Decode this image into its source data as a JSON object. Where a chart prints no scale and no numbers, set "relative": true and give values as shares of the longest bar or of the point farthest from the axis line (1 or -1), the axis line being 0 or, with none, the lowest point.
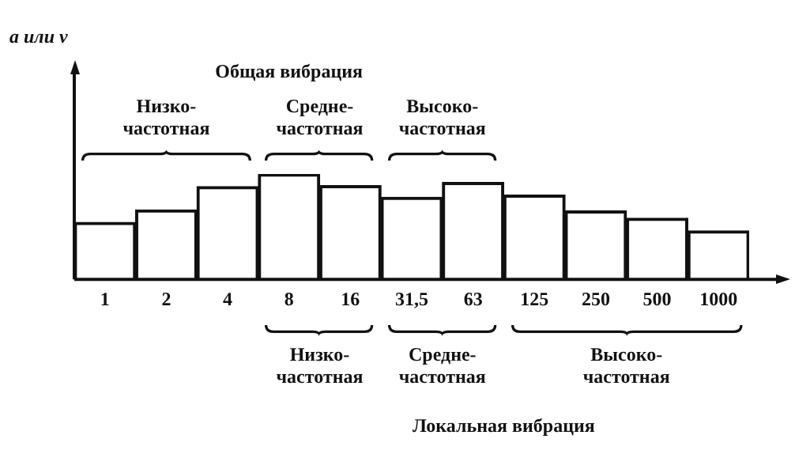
{
  "chart_data": {
    "type": "bar",
    "relative": true,
    "title": "Общая вибрация",
    "categories": [
      "1",
      "2",
      "4",
      "8",
      "16",
      "31,5",
      "63",
      "125",
      "250",
      "500",
      "1000"
    ],
    "values": [
      0.54,
      0.66,
      0.88,
      1,
      0.89,
      0.78,
      0.92,
      0.8,
      0.65,
      0.58,
      0.46
    ],
    "color": "#ffffff",
    "grid": false,
    "legend": false,
    "annotations": [
      "Низко- частотная",
      "Средне- частотная",
      "Высоко- частотная",
      "Низко- частотная",
      "Средне- частотная",
      "Высоко- частотная",
      "a или v",
      "Локальная вибрация"
    ]
  }
}
